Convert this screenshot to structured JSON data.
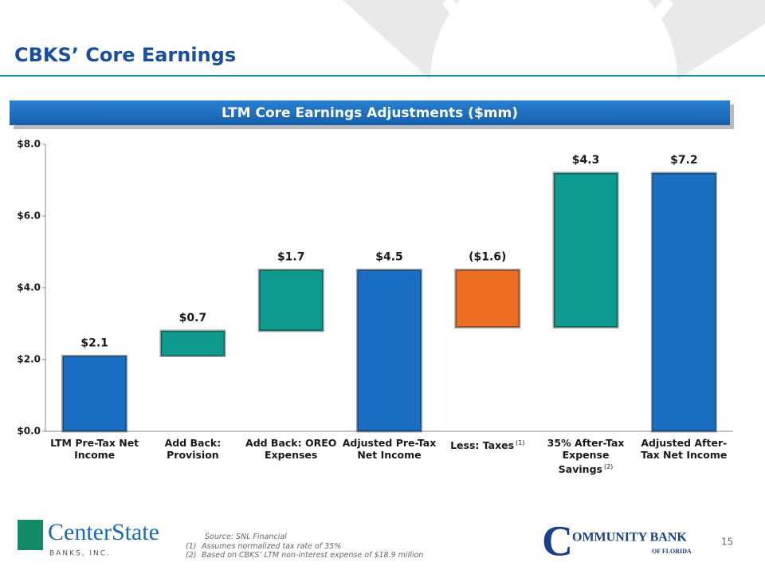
{
  "slide_title": "CBKS’ Core Earnings",
  "chart_data": {
    "type": "waterfall",
    "title": "LTM Core Earnings Adjustments ($mm)",
    "categories": [
      "LTM Pre-Tax Net Income",
      "Add Back: Provision",
      "Add Back: OREO Expenses",
      "Adjusted Pre-Tax Net Income",
      "Less: Taxes",
      "35% After-Tax Expense Savings",
      "Adjusted After-Tax Net Income"
    ],
    "category_notes": [
      null,
      null,
      null,
      null,
      "(1)",
      "(2)",
      null
    ],
    "values": [
      2.1,
      0.7,
      1.7,
      4.5,
      -1.6,
      4.3,
      7.2
    ],
    "value_labels": [
      "$2.1",
      "$0.7",
      "$1.7",
      "$4.5",
      "($1.6)",
      "$4.3",
      "$7.2"
    ],
    "totals": [
      true,
      false,
      false,
      true,
      false,
      false,
      true
    ],
    "colors": {
      "total": "#1b6fc2",
      "increase": "#0f9a8f",
      "decrease": "#ec6e23"
    },
    "ylim": [
      0,
      8
    ],
    "yticks": [
      {
        "value": 0,
        "label": "$0.0"
      },
      {
        "value": 2,
        "label": "$2.0"
      },
      {
        "value": 4,
        "label": "$4.0"
      },
      {
        "value": 6,
        "label": "$6.0"
      },
      {
        "value": 8,
        "label": "$8.0"
      }
    ],
    "grid": false
  },
  "footer": {
    "source": "Source: SNL Financial",
    "notes": [
      {
        "marker": "(1)",
        "text": "Assumes normalized tax rate of 35%"
      },
      {
        "marker": "(2)",
        "text": "Based on CBKS’ LTM non-interest expense of $18.9 million"
      }
    ],
    "page_number": "15",
    "left_logo": {
      "name": "CenterState",
      "subtitle": "BANKS, INC."
    },
    "right_logo": {
      "name": "OMMUNITY BANK",
      "initial": "C",
      "subtitle": "OF FLORIDA"
    }
  }
}
